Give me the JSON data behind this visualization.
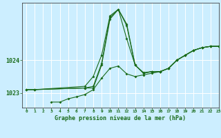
{
  "title": "Graphe pression niveau de la mer (hPa)",
  "bg_color": "#cceeff",
  "grid_color": "#ffffff",
  "line_color": "#1a6b1a",
  "xlim": [
    -0.5,
    23
  ],
  "ylim": [
    1022.55,
    1025.75
  ],
  "yticks": [
    1023,
    1024
  ],
  "ytick_labels": [
    "1023",
    "1024"
  ],
  "xticks": [
    0,
    1,
    2,
    3,
    4,
    5,
    6,
    7,
    8,
    9,
    10,
    11,
    12,
    13,
    14,
    15,
    16,
    17,
    18,
    19,
    20,
    21,
    22,
    23
  ],
  "series": [
    {
      "x": [
        0,
        1,
        7,
        8,
        9,
        10,
        11,
        12,
        13,
        14,
        15,
        16,
        17,
        18,
        19,
        20,
        21,
        22,
        23
      ],
      "y": [
        1023.1,
        1023.1,
        1023.15,
        1023.2,
        1023.9,
        1025.3,
        1025.55,
        1025.1,
        1023.85,
        1023.6,
        1023.65,
        1023.65,
        1023.75,
        1024.0,
        1024.15,
        1024.3,
        1024.38,
        1024.42,
        1024.42
      ]
    },
    {
      "x": [
        0,
        1,
        7,
        8,
        9,
        10,
        11,
        12,
        13,
        14,
        15,
        16,
        17,
        18,
        19,
        20,
        21,
        22,
        23
      ],
      "y": [
        1023.1,
        1023.1,
        1023.2,
        1023.5,
        1024.15,
        1025.35,
        1025.55,
        1024.65,
        1023.85,
        1023.6,
        1023.65,
        1023.65,
        1023.75,
        1024.0,
        1024.15,
        1024.3,
        1024.38,
        1024.42,
        1024.42
      ]
    },
    {
      "x": [
        3,
        4,
        5,
        6,
        7,
        8,
        9,
        10,
        11,
        12,
        13,
        14,
        15,
        16,
        17,
        18,
        19,
        20,
        21,
        22,
        23
      ],
      "y": [
        1022.72,
        1022.72,
        1022.82,
        1022.88,
        1022.95,
        1023.1,
        1023.45,
        1023.75,
        1023.82,
        1023.58,
        1023.5,
        1023.55,
        1023.6,
        1023.65,
        1023.75,
        1024.0,
        1024.15,
        1024.3,
        1024.38,
        1024.42,
        1024.42
      ]
    },
    {
      "x": [
        0,
        1,
        7,
        8,
        9,
        10,
        11,
        12,
        13,
        14,
        15,
        16,
        17,
        18,
        19,
        20,
        21,
        22,
        23
      ],
      "y": [
        1023.1,
        1023.1,
        1023.15,
        1023.15,
        1023.85,
        1025.25,
        1025.55,
        1025.05,
        1023.85,
        1023.62,
        1023.65,
        1023.65,
        1023.75,
        1024.0,
        1024.15,
        1024.3,
        1024.38,
        1024.42,
        1024.42
      ]
    }
  ]
}
